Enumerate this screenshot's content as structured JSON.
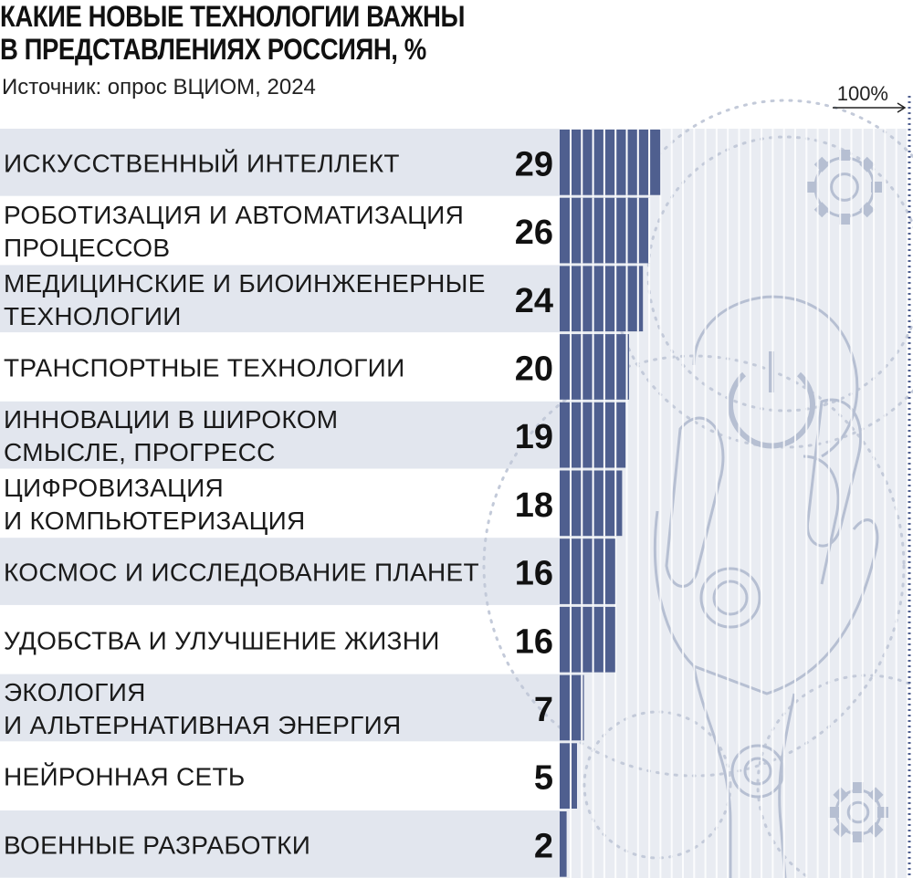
{
  "title": {
    "line1": "КАКИЕ НОВЫЕ ТЕХНОЛОГИИ ВАЖНЫ",
    "line2": "В ПРЕДСТАВЛЕНИЯХ РОССИЯН, %"
  },
  "source": "Источник: опрос ВЦИОМ, 2024",
  "scale_label": "100%",
  "colors": {
    "bar": "#4f5f8f",
    "row_band": "#e2e6ee",
    "track": "#dfe3ec",
    "illustration": "#b6bfd2",
    "text": "#1a1a1a"
  },
  "chart_data": {
    "type": "bar",
    "orientation": "horizontal",
    "unit": "%",
    "xlim": [
      0,
      100
    ],
    "categories": [
      [
        "ИСКУССТВЕННЫЙ ИНТЕЛЛЕКТ"
      ],
      [
        "РОБОТИЗАЦИЯ И АВТОМАТИЗАЦИЯ",
        "ПРОЦЕССОВ"
      ],
      [
        "МЕДИЦИНСКИЕ И БИОИНЖЕНЕРНЫЕ",
        "ТЕХНОЛОГИИ"
      ],
      [
        "ТРАНСПОРТНЫЕ ТЕХНОЛОГИИ"
      ],
      [
        "ИННОВАЦИИ В ШИРОКОМ",
        "СМЫСЛЕ, ПРОГРЕСС"
      ],
      [
        "ЦИФРОВИЗАЦИЯ",
        "И КОМПЬЮТЕРИЗАЦИЯ"
      ],
      [
        "КОСМОС И ИССЛЕДОВАНИЕ ПЛАНЕТ"
      ],
      [
        "УДОБСТВА И УЛУЧШЕНИЕ ЖИЗНИ"
      ],
      [
        "ЭКОЛОГИЯ",
        "И АЛЬТЕРНАТИВНАЯ ЭНЕРГИЯ"
      ],
      [
        "НЕЙРОННАЯ СЕТЬ"
      ],
      [
        "ВОЕННЫЕ РАЗРАБОТКИ"
      ]
    ],
    "values": [
      29,
      26,
      24,
      20,
      19,
      18,
      16,
      16,
      7,
      5,
      2
    ]
  }
}
